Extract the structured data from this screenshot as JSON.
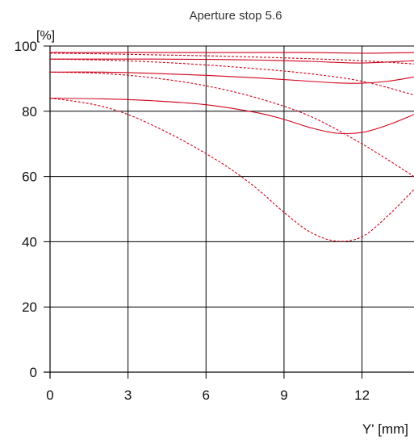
{
  "chart_data": {
    "type": "line",
    "title": "Aperture stop 5.6",
    "ylabel": "[%]",
    "xlabel": "Y' [mm]",
    "xlim": [
      0,
      14
    ],
    "ylim": [
      0,
      100
    ],
    "xticks": [
      0,
      3,
      6,
      9,
      12
    ],
    "yticks": [
      0,
      20,
      40,
      60,
      80,
      100
    ],
    "grid": true,
    "line_color": "#d0021b",
    "series": [
      {
        "style": "solid",
        "x": [
          0,
          2,
          4,
          6,
          8,
          10,
          12,
          14
        ],
        "y": [
          98.0,
          98.0,
          98.0,
          98.0,
          98.0,
          98.0,
          97.8,
          98.0
        ]
      },
      {
        "style": "solid",
        "x": [
          0,
          2,
          4,
          6,
          8,
          10,
          12,
          14
        ],
        "y": [
          96.0,
          96.0,
          96.0,
          95.9,
          95.7,
          95.3,
          94.8,
          95.5
        ]
      },
      {
        "style": "solid",
        "x": [
          0,
          2,
          4,
          6,
          8,
          10,
          11,
          12,
          13,
          14
        ],
        "y": [
          92.0,
          92.0,
          91.6,
          91.0,
          90.2,
          89.2,
          88.7,
          88.6,
          89.2,
          90.5
        ]
      },
      {
        "style": "solid",
        "x": [
          0,
          2,
          4,
          6,
          8,
          9,
          10,
          11,
          12,
          13,
          14
        ],
        "y": [
          84.0,
          83.8,
          83.2,
          82.0,
          79.5,
          77.5,
          75.0,
          73.3,
          73.5,
          75.8,
          79.0
        ]
      },
      {
        "style": "dashed",
        "x": [
          0,
          2,
          4,
          6,
          8,
          10,
          12,
          14
        ],
        "y": [
          97.8,
          97.6,
          97.3,
          97.0,
          96.6,
          96.1,
          95.5,
          94.5
        ]
      },
      {
        "style": "dashed",
        "x": [
          0,
          2,
          4,
          6,
          8,
          10,
          12,
          14
        ],
        "y": [
          96.0,
          95.7,
          95.1,
          94.2,
          93.0,
          91.5,
          89.2,
          85.0
        ]
      },
      {
        "style": "dashed",
        "x": [
          0,
          2,
          4,
          6,
          8,
          10,
          12,
          14
        ],
        "y": [
          92.0,
          91.6,
          90.2,
          87.8,
          84.0,
          78.5,
          70.0,
          60.0
        ]
      },
      {
        "style": "dashed",
        "x": [
          0,
          1,
          2,
          3,
          4,
          5,
          6,
          7,
          8,
          9,
          10,
          11,
          12,
          13,
          14
        ],
        "y": [
          84.0,
          83.0,
          81.5,
          79.0,
          75.5,
          71.5,
          67.0,
          62.0,
          56.0,
          49.0,
          43.0,
          40.2,
          41.5,
          48.0,
          56.0
        ]
      }
    ]
  }
}
